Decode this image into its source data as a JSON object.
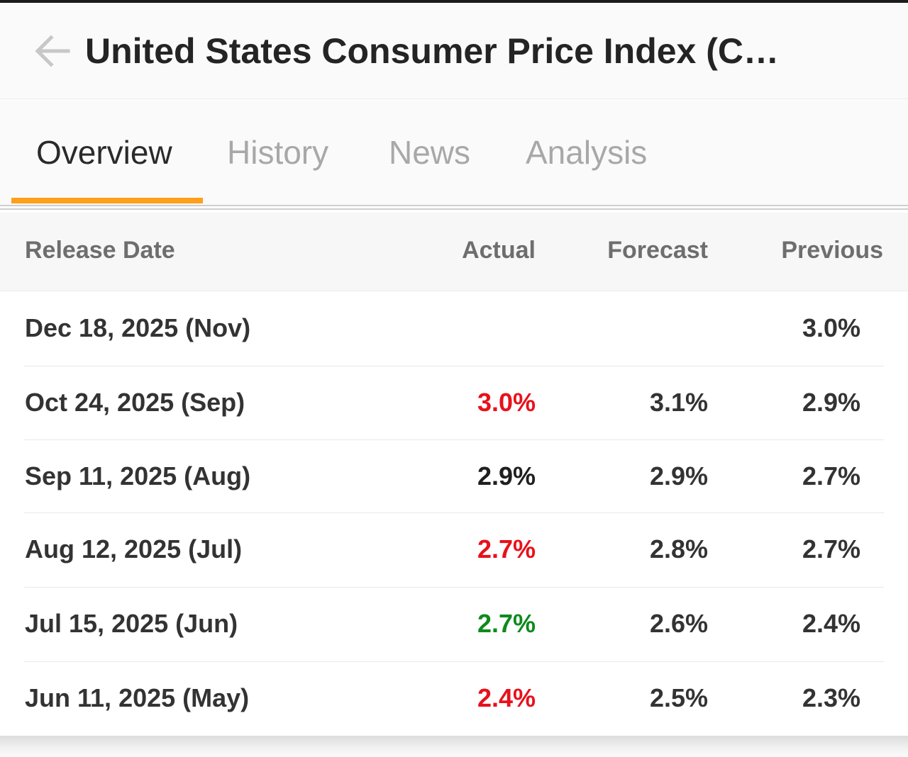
{
  "header": {
    "title": "United States Consumer Price Index (C…"
  },
  "tabs": [
    {
      "label": "Overview",
      "active": true
    },
    {
      "label": "History",
      "active": false
    },
    {
      "label": "News",
      "active": false
    },
    {
      "label": "Analysis",
      "active": false
    }
  ],
  "table": {
    "columns": {
      "release_date": "Release Date",
      "actual": "Actual",
      "forecast": "Forecast",
      "previous": "Previous"
    },
    "rows": [
      {
        "date": "Dec 18, 2025 (Nov)",
        "actual": "",
        "actual_color": "#333333",
        "forecast": "",
        "previous": "3.0%"
      },
      {
        "date": "Oct 24, 2025 (Sep)",
        "actual": "3.0%",
        "actual_color": "#e8111b",
        "forecast": "3.1%",
        "previous": "2.9%"
      },
      {
        "date": "Sep 11, 2025 (Aug)",
        "actual": "2.9%",
        "actual_color": "#1f1f1f",
        "forecast": "2.9%",
        "previous": "2.7%"
      },
      {
        "date": "Aug 12, 2025 (Jul)",
        "actual": "2.7%",
        "actual_color": "#e8111b",
        "forecast": "2.8%",
        "previous": "2.7%"
      },
      {
        "date": "Jul 15, 2025 (Jun)",
        "actual": "2.7%",
        "actual_color": "#0f8a1c",
        "forecast": "2.6%",
        "previous": "2.4%"
      },
      {
        "date": "Jun 11, 2025 (May)",
        "actual": "2.4%",
        "actual_color": "#e8111b",
        "forecast": "2.5%",
        "previous": "2.3%"
      }
    ]
  },
  "colors": {
    "accent": "#ff9f1a",
    "negative": "#e8111b",
    "positive": "#0f8a1c",
    "neutral": "#1f1f1f"
  },
  "icons": {
    "back": "arrow-left-icon"
  }
}
